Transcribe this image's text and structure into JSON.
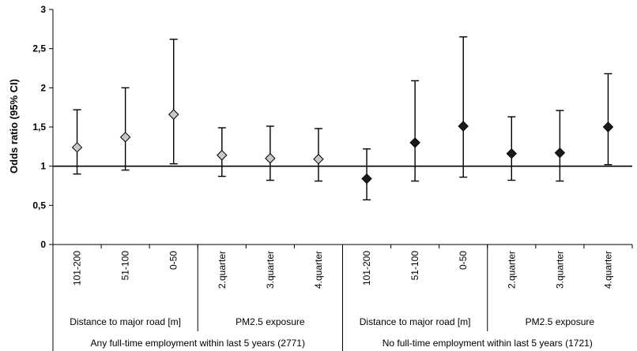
{
  "chart_data": {
    "type": "scatter",
    "ylabel": "Odds ratio (95% CI)",
    "ylim": [
      0,
      3
    ],
    "yticks": [
      "0",
      "0,5",
      "1",
      "1,5",
      "2",
      "2,5",
      "3"
    ],
    "ytick_values": [
      0,
      0.5,
      1,
      1.5,
      2,
      2.5,
      3
    ],
    "reference_line": 1,
    "categories": [
      "101-200",
      "51-100",
      "0-50",
      "2.quarter",
      "3.quarter",
      "4.quarter",
      "101-200",
      "51-100",
      "0-50",
      "2.quarter",
      "3.quarter",
      "4.quarter"
    ],
    "subgroups": [
      {
        "label": "Distance to major road [m]",
        "start": 0,
        "end": 3
      },
      {
        "label": "PM2.5 exposure",
        "start": 3,
        "end": 6
      },
      {
        "label": "Distance to major road [m]",
        "start": 6,
        "end": 9
      },
      {
        "label": "PM2.5 exposure",
        "start": 9,
        "end": 12
      }
    ],
    "groups": [
      {
        "label": "Any full-time employment within last 5 years (2771)",
        "start": 0,
        "end": 6
      },
      {
        "label": "No full-time employment within last 5 years (1721)",
        "start": 6,
        "end": 12
      }
    ],
    "points": [
      {
        "or": 1.24,
        "lo": 0.9,
        "hi": 1.72,
        "marker": "light"
      },
      {
        "or": 1.37,
        "lo": 0.95,
        "hi": 2.0,
        "marker": "light"
      },
      {
        "or": 1.66,
        "lo": 1.03,
        "hi": 2.62,
        "marker": "light"
      },
      {
        "or": 1.14,
        "lo": 0.87,
        "hi": 1.49,
        "marker": "light"
      },
      {
        "or": 1.1,
        "lo": 0.82,
        "hi": 1.51,
        "marker": "light"
      },
      {
        "or": 1.09,
        "lo": 0.81,
        "hi": 1.48,
        "marker": "light"
      },
      {
        "or": 0.84,
        "lo": 0.57,
        "hi": 1.22,
        "marker": "dark"
      },
      {
        "or": 1.3,
        "lo": 0.81,
        "hi": 2.09,
        "marker": "dark"
      },
      {
        "or": 1.51,
        "lo": 0.86,
        "hi": 2.65,
        "marker": "dark"
      },
      {
        "or": 1.16,
        "lo": 0.82,
        "hi": 1.63,
        "marker": "dark"
      },
      {
        "or": 1.17,
        "lo": 0.81,
        "hi": 1.71,
        "marker": "dark"
      },
      {
        "or": 1.5,
        "lo": 1.02,
        "hi": 2.18,
        "marker": "dark"
      }
    ],
    "colors": {
      "light_marker": "#c8c8c8",
      "dark_marker": "#1a1a1a",
      "axis": "#000000"
    }
  }
}
